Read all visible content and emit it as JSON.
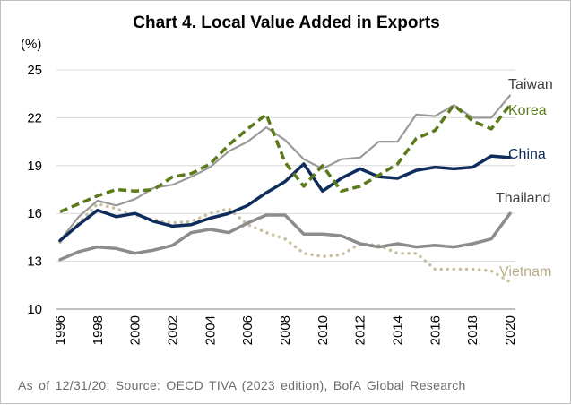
{
  "chart_data": {
    "type": "line",
    "title": "Chart 4. Local Value Added in Exports",
    "unit_label": "(%)",
    "ylim": [
      10,
      25
    ],
    "y_ticks": [
      10,
      13,
      16,
      19,
      22,
      25
    ],
    "xlim": [
      1996,
      2020
    ],
    "x_ticks": [
      1996,
      1998,
      2000,
      2002,
      2004,
      2006,
      2008,
      2010,
      2012,
      2014,
      2016,
      2018,
      2020
    ],
    "grid": "horizontal",
    "legend": "inline labels at right end of lines",
    "x": [
      1996,
      1997,
      1998,
      1999,
      2000,
      2001,
      2002,
      2003,
      2004,
      2005,
      2006,
      2007,
      2008,
      2009,
      2010,
      2011,
      2012,
      2013,
      2014,
      2015,
      2016,
      2017,
      2018,
      2019,
      2020
    ],
    "series": [
      {
        "name": "Taiwan",
        "color": "#9a9a9a",
        "style": "solid-thin",
        "values": [
          14.3,
          15.8,
          16.8,
          16.5,
          16.9,
          17.6,
          17.8,
          18.3,
          18.9,
          19.9,
          20.5,
          21.4,
          20.6,
          19.4,
          18.8,
          19.4,
          19.5,
          20.5,
          20.5,
          22.2,
          22.1,
          22.8,
          22.0,
          22.0,
          23.4
        ]
      },
      {
        "name": "Korea",
        "color": "#5b7a1a",
        "style": "dashed",
        "values": [
          16.1,
          16.6,
          17.1,
          17.5,
          17.4,
          17.5,
          18.3,
          18.5,
          19.1,
          20.3,
          21.3,
          22.2,
          19.2,
          17.7,
          19.0,
          17.4,
          17.7,
          18.4,
          19.1,
          20.7,
          21.2,
          22.8,
          21.8,
          21.3,
          22.8
        ]
      },
      {
        "name": "China",
        "color": "#0f2d5c",
        "style": "solid-thick",
        "values": [
          14.3,
          15.3,
          16.2,
          15.8,
          16.0,
          15.5,
          15.2,
          15.3,
          15.7,
          16.0,
          16.5,
          17.3,
          18.0,
          19.1,
          17.4,
          18.2,
          18.8,
          18.3,
          18.2,
          18.7,
          18.9,
          18.8,
          18.9,
          19.6,
          19.5
        ]
      },
      {
        "name": "Thailand",
        "color": "#8c8c8c",
        "style": "solid-thick",
        "values": [
          13.1,
          13.6,
          13.9,
          13.8,
          13.5,
          13.7,
          14.0,
          14.8,
          15.0,
          14.8,
          15.4,
          15.9,
          15.9,
          14.7,
          14.7,
          14.6,
          14.1,
          13.9,
          14.1,
          13.9,
          14.0,
          13.9,
          14.1,
          14.4,
          16.0
        ]
      },
      {
        "name": "Vietnam",
        "color": "#c8bfa0",
        "style": "dotted",
        "values": [
          14.2,
          15.4,
          16.6,
          16.3,
          15.9,
          15.6,
          15.4,
          15.5,
          16.0,
          16.3,
          15.3,
          14.8,
          14.4,
          13.5,
          13.3,
          13.4,
          14.1,
          14.0,
          13.5,
          13.5,
          12.5,
          12.5,
          12.5,
          12.4,
          11.7
        ]
      }
    ]
  },
  "footer": "As of 12/31/20; Source: OECD TIVA (2023 edition), BofA Global Research"
}
